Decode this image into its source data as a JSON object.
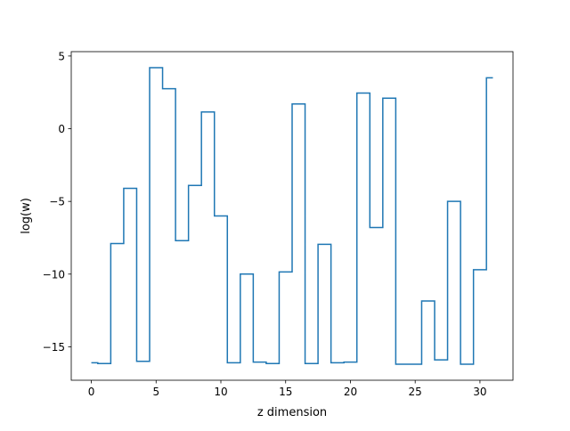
{
  "chart_data": {
    "type": "line",
    "drawstyle": "steps-mid",
    "xlabel": "z dimension",
    "ylabel": "log(w)",
    "xlim": [
      -1.55,
      32.55
    ],
    "ylim": [
      -17.3,
      5.3
    ],
    "xticks": [
      0,
      5,
      10,
      15,
      20,
      25,
      30
    ],
    "xtick_labels": [
      "0",
      "5",
      "10",
      "15",
      "20",
      "25",
      "30"
    ],
    "yticks": [
      5,
      0,
      -5,
      -10,
      -15
    ],
    "ytick_labels": [
      "5",
      "0",
      "−5",
      "−10",
      "−15"
    ],
    "grid": false,
    "series": [
      {
        "color": "#1f77b4",
        "x": [
          0,
          1,
          2,
          3,
          4,
          5,
          6,
          7,
          8,
          9,
          10,
          11,
          12,
          13,
          14,
          15,
          16,
          17,
          18,
          19,
          20,
          21,
          22,
          23,
          24,
          25,
          26,
          27,
          28,
          29,
          30,
          31
        ],
        "y": [
          -16.1,
          -16.15,
          -7.9,
          -4.1,
          -16.0,
          4.2,
          2.75,
          -7.7,
          -3.9,
          1.15,
          -6.0,
          -16.1,
          -10.0,
          -16.05,
          -16.15,
          -9.85,
          1.7,
          -16.15,
          -7.95,
          -16.1,
          -16.05,
          2.45,
          -6.8,
          2.1,
          -16.2,
          -16.2,
          -11.85,
          -15.9,
          -5.0,
          -16.2,
          -9.7,
          3.5
        ]
      }
    ]
  }
}
